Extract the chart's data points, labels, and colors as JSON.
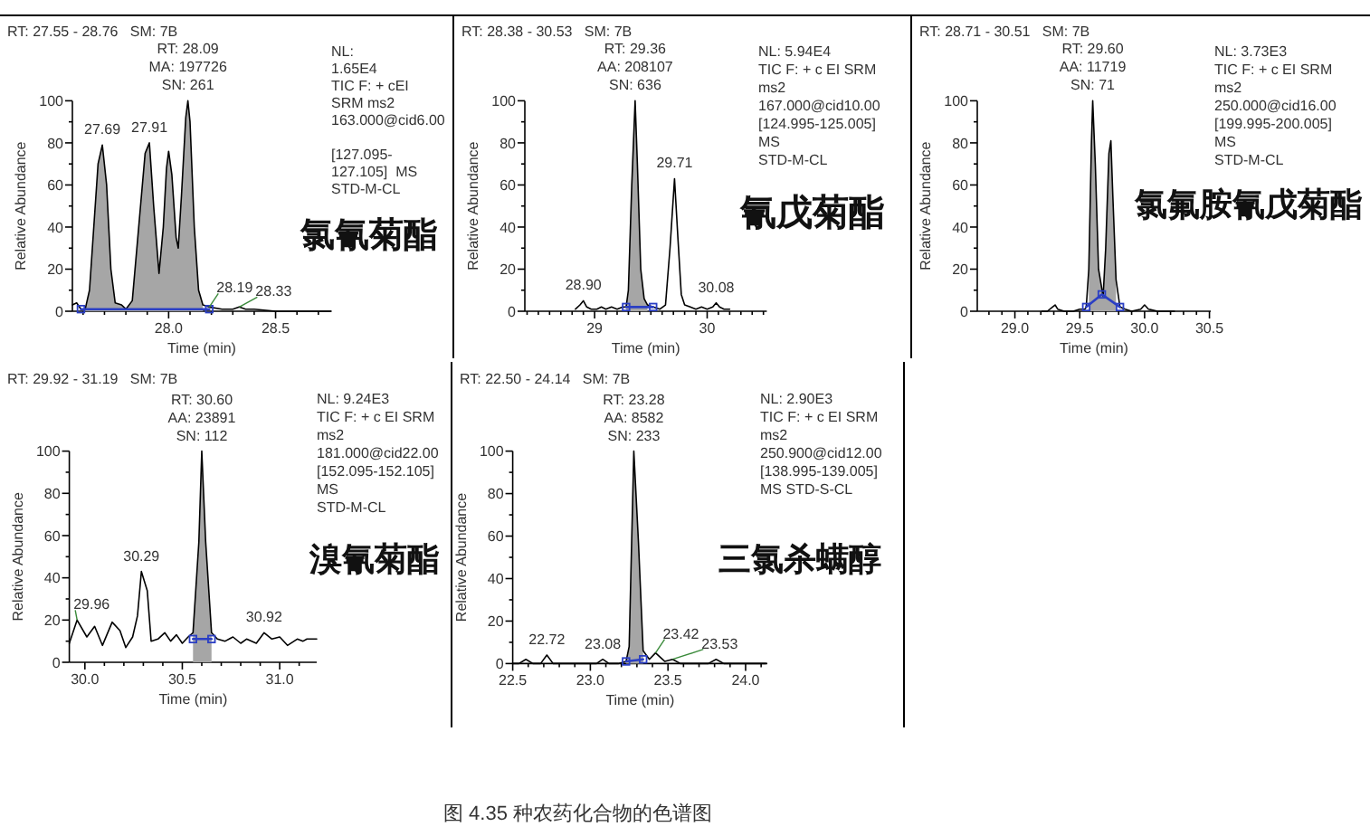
{
  "chart_data": [
    {
      "type": "line",
      "xlabel": "Time (min)",
      "ylabel": "Relative Abundance",
      "xlim": [
        27.55,
        28.76
      ],
      "ylim": [
        0,
        100
      ],
      "xticks": [
        {
          "value": 27.6,
          "label": null
        },
        {
          "value": 27.7,
          "label": null
        },
        {
          "value": 27.8,
          "label": null
        },
        {
          "value": 27.9,
          "label": null
        },
        {
          "value": 28,
          "label": "28.0"
        },
        {
          "value": 28.1,
          "label": null
        },
        {
          "value": 28.2,
          "label": null
        },
        {
          "value": 28.3,
          "label": null
        },
        {
          "value": 28.4,
          "label": null
        },
        {
          "value": 28.5,
          "label": "28.5"
        },
        {
          "value": 28.6,
          "label": null
        },
        {
          "value": 28.7,
          "label": null
        }
      ],
      "yticks": [
        0,
        {
          "value": 10,
          "label": null
        },
        20,
        {
          "value": 30,
          "label": null
        },
        40,
        {
          "value": 50,
          "label": null
        },
        60,
        {
          "value": 70,
          "label": null
        },
        80,
        {
          "value": 90,
          "label": null
        },
        100
      ],
      "series": [
        {
          "type": "area",
          "color": "#a6a6a6",
          "x": [
            27.61,
            27.63,
            27.65,
            27.67,
            27.69,
            27.71,
            27.73,
            27.75,
            27.78,
            27.8,
            27.83,
            27.86,
            27.89,
            27.91,
            27.93,
            27.955,
            27.975,
            27.99,
            28.0,
            28.015,
            28.035,
            28.045,
            28.06,
            28.08,
            28.09,
            28.1,
            28.12,
            28.14,
            28.16
          ],
          "values": [
            1,
            10,
            40,
            70,
            79,
            60,
            20,
            4,
            3,
            1,
            5,
            40,
            75,
            80,
            50,
            18,
            40,
            68,
            76,
            65,
            35,
            30,
            55,
            92,
            100,
            90,
            40,
            10,
            3
          ]
        },
        {
          "type": "line",
          "color": "#000000",
          "x": [
            27.55,
            27.57,
            27.59,
            27.61,
            27.63,
            27.65,
            27.67,
            27.69,
            27.71,
            27.73,
            27.75,
            27.78,
            27.8,
            27.83,
            27.86,
            27.89,
            27.91,
            27.93,
            27.955,
            27.975,
            27.99,
            28.0,
            28.015,
            28.035,
            28.045,
            28.06,
            28.08,
            28.09,
            28.1,
            28.12,
            28.14,
            28.16,
            28.19,
            28.25,
            28.3,
            28.33,
            28.36,
            28.4,
            28.5,
            28.6,
            28.76
          ],
          "values": [
            3,
            4,
            1,
            1,
            10,
            40,
            70,
            79,
            60,
            20,
            4,
            3,
            1,
            5,
            40,
            75,
            80,
            50,
            18,
            40,
            68,
            76,
            65,
            35,
            30,
            55,
            92,
            100,
            90,
            40,
            10,
            3,
            2,
            1,
            1,
            2,
            1,
            1,
            0,
            0,
            0
          ]
        },
        {
          "type": "line",
          "color": "#2b3fc4",
          "marker": "square",
          "x": [
            27.59,
            28.19
          ],
          "values": [
            1,
            1
          ]
        }
      ],
      "annotations": [
        "RT: 27.55 - 28.76   SM: 7B",
        "NL:\n1.65E4\nTIC F: + cEI\nSRM ms2\n163.000@cid6.00\n\n[127.095-\n127.105]  MS\nSTD-M-CL",
        "氯氰菊酯",
        {
          "text": "RT: 28.09\nMA: 197726\nSN: 261",
          "x": 28.09,
          "y": 100
        },
        {
          "text": "27.69",
          "x": 27.69,
          "y": 79
        },
        {
          "text": "27.91",
          "x": 27.91,
          "y": 80
        },
        {
          "text": "28.19",
          "x": 28.19,
          "y": 2
        },
        {
          "text": "28.33",
          "x": 28.33,
          "y": 2
        }
      ]
    },
    {
      "type": "line",
      "xlabel": "Time (min)",
      "ylabel": "Relative Abundance",
      "xlim": [
        28.38,
        30.53
      ],
      "ylim": [
        0,
        100
      ],
      "xticks": [
        {
          "value": 28.4,
          "label": null
        },
        {
          "value": 28.5,
          "label": null
        },
        {
          "value": 28.6,
          "label": null
        },
        {
          "value": 28.7,
          "label": null
        },
        {
          "value": 28.8,
          "label": null
        },
        {
          "value": 28.9,
          "label": null
        },
        29,
        {
          "value": 29.1,
          "label": null
        },
        {
          "value": 29.2,
          "label": null
        },
        {
          "value": 29.3,
          "label": null
        },
        {
          "value": 29.4,
          "label": null
        },
        {
          "value": 29.5,
          "label": null
        },
        {
          "value": 29.6,
          "label": null
        },
        {
          "value": 29.7,
          "label": null
        },
        {
          "value": 29.8,
          "label": null
        },
        {
          "value": 29.9,
          "label": null
        },
        30,
        {
          "value": 30.1,
          "label": null
        },
        {
          "value": 30.2,
          "label": null
        },
        {
          "value": 30.3,
          "label": null
        },
        {
          "value": 30.4,
          "label": null
        },
        {
          "value": 30.5,
          "label": null
        }
      ],
      "yticks": [
        0,
        {
          "value": 10,
          "label": null
        },
        20,
        {
          "value": 30,
          "label": null
        },
        40,
        {
          "value": 50,
          "label": null
        },
        60,
        {
          "value": 70,
          "label": null
        },
        80,
        {
          "value": 90,
          "label": null
        },
        100
      ],
      "series": [
        {
          "type": "area",
          "color": "#a6a6a6",
          "x": [
            29.28,
            29.3,
            29.33,
            29.36,
            29.38,
            29.41,
            29.44,
            29.47
          ],
          "values": [
            2,
            10,
            60,
            100,
            70,
            20,
            6,
            3
          ]
        },
        {
          "type": "line",
          "color": "#000000",
          "x": [
            28.83,
            28.87,
            28.9,
            28.93,
            28.97,
            29.02,
            29.06,
            29.1,
            29.15,
            29.2,
            29.25,
            29.28,
            29.3,
            29.33,
            29.36,
            29.38,
            29.41,
            29.44,
            29.47,
            29.52,
            29.58,
            29.63,
            29.67,
            29.71,
            29.74,
            29.77,
            29.8,
            29.85,
            29.9,
            29.95,
            30.0,
            30.05,
            30.08,
            30.11,
            30.15,
            30.2
          ],
          "values": [
            1,
            3,
            5,
            2,
            1,
            1,
            2,
            1,
            2,
            1,
            2,
            2,
            10,
            60,
            100,
            70,
            20,
            6,
            3,
            2,
            1,
            3,
            30,
            63,
            35,
            8,
            3,
            2,
            1,
            2,
            1,
            2,
            4,
            2,
            1,
            1
          ]
        },
        {
          "type": "line",
          "color": "#2b3fc4",
          "marker": "square",
          "x": [
            29.28,
            29.52
          ],
          "values": [
            2,
            2
          ]
        }
      ],
      "annotations": [
        "RT: 28.38 - 30.53   SM: 7B",
        "NL: 5.94E4\nTIC F: + c EI SRM\nms2\n167.000@cid10.00\n[124.995-125.005]\nMS\nSTD-M-CL",
        "氰戊菊酯",
        {
          "text": "RT: 29.36\nAA: 208107\nSN: 636",
          "x": 29.36,
          "y": 100
        },
        {
          "text": "28.90",
          "x": 28.9,
          "y": 5
        },
        {
          "text": "29.71",
          "x": 29.71,
          "y": 63
        },
        {
          "text": "30.08",
          "x": 30.08,
          "y": 4
        }
      ]
    },
    {
      "type": "line",
      "xlabel": "Time (min)",
      "ylabel": "Relative Abundance",
      "xlim": [
        28.71,
        30.51
      ],
      "ylim": [
        0,
        100
      ],
      "xticks": [
        {
          "value": 28.8,
          "label": null
        },
        {
          "value": 28.9,
          "label": null
        },
        {
          "value": 29,
          "label": "29.0"
        },
        {
          "value": 29.1,
          "label": null
        },
        {
          "value": 29.2,
          "label": null
        },
        {
          "value": 29.3,
          "label": null
        },
        {
          "value": 29.4,
          "label": null
        },
        {
          "value": 29.5,
          "label": "29.5"
        },
        {
          "value": 29.6,
          "label": null
        },
        {
          "value": 29.7,
          "label": null
        },
        {
          "value": 29.8,
          "label": null
        },
        {
          "value": 29.9,
          "label": null
        },
        {
          "value": 30,
          "label": "30.0"
        },
        {
          "value": 30.1,
          "label": null
        },
        {
          "value": 30.2,
          "label": null
        },
        {
          "value": 30.3,
          "label": null
        },
        {
          "value": 30.4,
          "label": null
        },
        {
          "value": 30.5,
          "label": "30.5"
        }
      ],
      "yticks": [
        0,
        {
          "value": 10,
          "label": null
        },
        20,
        {
          "value": 30,
          "label": null
        },
        40,
        {
          "value": 50,
          "label": null
        },
        60,
        {
          "value": 70,
          "label": null
        },
        80,
        {
          "value": 90,
          "label": null
        },
        100
      ],
      "series": [
        {
          "type": "area",
          "color": "#a6a6a6",
          "x": [
            29.57,
            29.59,
            29.6,
            29.62,
            29.645,
            29.68,
            29.7,
            29.725,
            29.74,
            29.755,
            29.78
          ],
          "values": [
            20,
            80,
            100,
            70,
            20,
            7,
            30,
            75,
            81,
            55,
            15
          ]
        },
        {
          "type": "line",
          "color": "#000000",
          "x": [
            29.21,
            29.25,
            29.29,
            29.31,
            29.33,
            29.38,
            29.45,
            29.5,
            29.54,
            29.55,
            29.57,
            29.59,
            29.6,
            29.62,
            29.645,
            29.68,
            29.7,
            29.725,
            29.74,
            29.755,
            29.78,
            29.81,
            29.85,
            29.9,
            29.97,
            30.0,
            30.03,
            30.1,
            30.23
          ],
          "values": [
            0,
            0,
            2,
            3,
            1,
            0,
            0,
            1,
            1,
            2,
            20,
            80,
            100,
            70,
            20,
            7,
            30,
            75,
            81,
            55,
            15,
            2,
            1,
            0,
            1,
            3,
            1,
            0,
            0
          ]
        },
        {
          "type": "line",
          "color": "#2b3fc4",
          "marker": "square",
          "x": [
            29.55,
            29.67,
            29.81
          ],
          "values": [
            2,
            8,
            2
          ]
        }
      ],
      "annotations": [
        "RT: 28.71 - 30.51   SM: 7B",
        "NL: 3.73E3\nTIC F: + c EI SRM\nms2\n250.000@cid16.00\n[199.995-200.005]\nMS\nSTD-M-CL",
        "氯氟胺氰戊菊酯",
        {
          "text": "RT: 29.60\nAA: 11719\nSN: 71",
          "x": 29.6,
          "y": 100
        }
      ]
    },
    {
      "type": "line",
      "xlabel": "Time (min)",
      "ylabel": "Relative Abundance",
      "xlim": [
        29.92,
        31.19
      ],
      "ylim": [
        0,
        100
      ],
      "xticks": [
        {
          "value": 30,
          "label": "30.0"
        },
        {
          "value": 30.1,
          "label": null
        },
        {
          "value": 30.2,
          "label": null
        },
        {
          "value": 30.3,
          "label": null
        },
        {
          "value": 30.4,
          "label": null
        },
        {
          "value": 30.5,
          "label": "30.5"
        },
        {
          "value": 30.6,
          "label": null
        },
        {
          "value": 30.7,
          "label": null
        },
        {
          "value": 30.8,
          "label": null
        },
        {
          "value": 30.9,
          "label": null
        },
        {
          "value": 31,
          "label": "31.0"
        },
        {
          "value": 31.1,
          "label": null
        }
      ],
      "yticks": [
        0,
        {
          "value": 10,
          "label": null
        },
        20,
        {
          "value": 30,
          "label": null
        },
        40,
        {
          "value": 50,
          "label": null
        },
        60,
        {
          "value": 70,
          "label": null
        },
        80,
        {
          "value": 90,
          "label": null
        },
        100
      ],
      "series": [
        {
          "type": "area",
          "color": "#a6a6a6",
          "x": [
            30.555,
            30.585,
            30.6,
            30.62,
            30.65
          ],
          "values": [
            14,
            57,
            100,
            57,
            14
          ]
        },
        {
          "type": "line",
          "color": "#000000",
          "x": [
            29.92,
            29.96,
            30.01,
            30.05,
            30.09,
            30.14,
            30.18,
            30.21,
            30.245,
            30.27,
            30.29,
            30.32,
            30.34,
            30.375,
            30.41,
            30.44,
            30.47,
            30.5,
            30.53,
            30.555,
            30.585,
            30.6,
            30.62,
            30.65,
            30.68,
            30.72,
            30.76,
            30.8,
            30.83,
            30.88,
            30.92,
            30.96,
            31.0,
            31.04,
            31.09,
            31.12,
            31.14,
            31.19
          ],
          "values": [
            9,
            20,
            12,
            17,
            8,
            19,
            15,
            7,
            12,
            22,
            43,
            34,
            10,
            11,
            14,
            10,
            13,
            9,
            12,
            14,
            57,
            100,
            57,
            14,
            11,
            10,
            12,
            9,
            11,
            9,
            14,
            11,
            12,
            8,
            11,
            10,
            11,
            11
          ]
        },
        {
          "type": "line",
          "color": "#2b3fc4",
          "marker": "square",
          "x": [
            30.555,
            30.65
          ],
          "values": [
            11,
            11
          ]
        }
      ],
      "annotations": [
        "RT: 29.92 - 31.19   SM: 7B",
        "NL: 9.24E3\nTIC F: + c EI SRM\nms2\n181.000@cid22.00\n[152.095-152.105]\nMS\nSTD-M-CL",
        "溴氰菊酯",
        {
          "text": "RT: 30.60\nAA: 23891\nSN: 112",
          "x": 30.6,
          "y": 100
        },
        {
          "text": "29.96",
          "x": 29.96,
          "y": 20
        },
        {
          "text": "30.29",
          "x": 30.29,
          "y": 43
        },
        {
          "text": "30.92",
          "x": 30.92,
          "y": 14
        }
      ]
    },
    {
      "type": "line",
      "xlabel": "Time (min)",
      "ylabel": "Relative Abundance",
      "xlim": [
        22.5,
        24.14
      ],
      "ylim": [
        0,
        100
      ],
      "xticks": [
        {
          "value": 22.5,
          "label": "22.5"
        },
        {
          "value": 22.6,
          "label": null
        },
        {
          "value": 22.7,
          "label": null
        },
        {
          "value": 22.8,
          "label": null
        },
        {
          "value": 22.9,
          "label": null
        },
        {
          "value": 23,
          "label": "23.0"
        },
        {
          "value": 23.1,
          "label": null
        },
        {
          "value": 23.2,
          "label": null
        },
        {
          "value": 23.3,
          "label": null
        },
        {
          "value": 23.4,
          "label": null
        },
        {
          "value": 23.5,
          "label": "23.5"
        },
        {
          "value": 23.6,
          "label": null
        },
        {
          "value": 23.7,
          "label": null
        },
        {
          "value": 23.8,
          "label": null
        },
        {
          "value": 23.9,
          "label": null
        },
        {
          "value": 24,
          "label": "24.0"
        },
        {
          "value": 24.1,
          "label": null
        }
      ],
      "yticks": [
        0,
        {
          "value": 10,
          "label": null
        },
        20,
        {
          "value": 30,
          "label": null
        },
        40,
        {
          "value": 50,
          "label": null
        },
        60,
        {
          "value": 70,
          "label": null
        },
        80,
        {
          "value": 90,
          "label": null
        },
        100
      ],
      "series": [
        {
          "type": "area",
          "color": "#a6a6a6",
          "x": [
            23.23,
            23.25,
            23.28,
            23.31,
            23.34
          ],
          "values": [
            1,
            8,
            100,
            57,
            6
          ]
        },
        {
          "type": "line",
          "color": "#000000",
          "x": [
            22.5,
            22.54,
            22.585,
            22.63,
            22.68,
            22.72,
            22.76,
            22.8,
            22.88,
            22.96,
            23.04,
            23.08,
            23.12,
            23.18,
            23.23,
            23.25,
            23.28,
            23.31,
            23.34,
            23.38,
            23.42,
            23.48,
            23.53,
            23.58,
            23.66,
            23.76,
            23.81,
            23.86,
            23.95,
            24.05,
            24.13
          ],
          "values": [
            0,
            0,
            2,
            0,
            0,
            4,
            0,
            0,
            0,
            0,
            0,
            2,
            0,
            0,
            1,
            8,
            100,
            57,
            6,
            2,
            5,
            1,
            2,
            0,
            0,
            0,
            2,
            0,
            0,
            0,
            0
          ]
        },
        {
          "type": "line",
          "color": "#2b3fc4",
          "marker": "square",
          "x": [
            23.23,
            23.34
          ],
          "values": [
            1,
            2
          ]
        }
      ],
      "annotations": [
        "RT: 22.50 - 24.14   SM: 7B",
        "NL: 2.90E3\nTIC F: + c EI SRM\nms2\n250.900@cid12.00\n[138.995-139.005]\nMS STD-S-CL",
        "三氯杀螨醇",
        "图 4.35 种农药化合物的色谱图",
        {
          "text": "RT: 23.28\nAA: 8582\nSN: 233",
          "x": 23.28,
          "y": 100
        },
        {
          "text": "22.72",
          "x": 22.72,
          "y": 4
        },
        {
          "text": "23.08",
          "x": 23.08,
          "y": 2
        },
        {
          "text": "23.42",
          "x": 23.42,
          "y": 5
        },
        {
          "text": "23.53",
          "x": 23.53,
          "y": 2
        }
      ]
    }
  ]
}
